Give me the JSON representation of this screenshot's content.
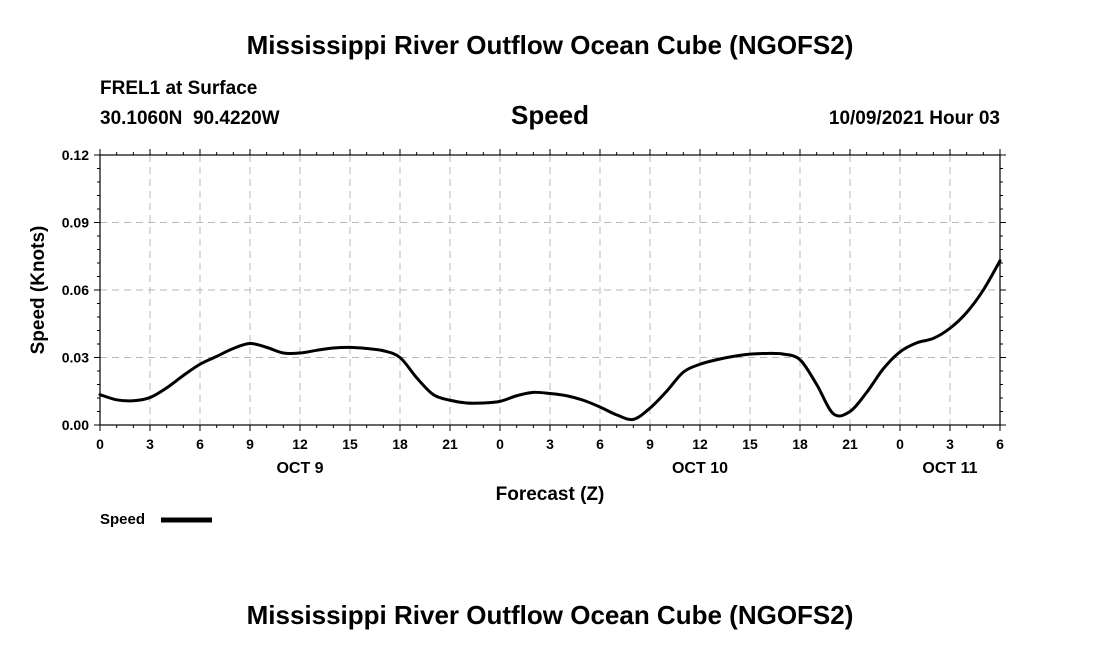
{
  "header": {
    "title_top": "Mississippi River Outflow Ocean Cube (NGOFS2)",
    "title_bottom": "Mississippi River Outflow Ocean Cube (NGOFS2)",
    "station": "FREL1 at Surface",
    "coordinates": "30.1060N  90.4220W",
    "parameter": "Speed",
    "datetime": "10/09/2021 Hour 03"
  },
  "chart_data": {
    "type": "line",
    "xlabel": "Forecast (Z)",
    "ylabel": "Speed (Knots)",
    "x_unit": "forecast hour from 0Z Oct 9 (2021)",
    "xlim": [
      0,
      54
    ],
    "ylim": [
      0,
      0.12
    ],
    "yticks": [
      "0.00",
      "0.03",
      "0.06",
      "0.09",
      "0.12"
    ],
    "ytick_values": [
      0,
      0.03,
      0.06,
      0.09,
      0.12
    ],
    "xtick_labels": [
      "0",
      "3",
      "6",
      "9",
      "12",
      "15",
      "18",
      "21",
      "0",
      "3",
      "6",
      "9",
      "12",
      "15",
      "18",
      "21",
      "0",
      "3",
      "6"
    ],
    "date_labels": [
      {
        "label": "OCT 9",
        "hour": 12
      },
      {
        "label": "OCT 10",
        "hour": 36
      },
      {
        "label": "OCT 11",
        "hour": 51
      }
    ],
    "grid": true,
    "legend": "bottom-left",
    "series": [
      {
        "name": "Speed",
        "color": "#000000",
        "x": [
          0,
          1,
          2,
          3,
          4,
          5,
          6,
          7,
          8,
          9,
          10,
          11,
          12,
          13,
          14,
          15,
          16,
          17,
          18,
          19,
          20,
          21,
          22,
          23,
          24,
          25,
          26,
          27,
          28,
          29,
          30,
          31,
          32,
          33,
          34,
          35,
          36,
          37,
          38,
          39,
          40,
          41,
          42,
          43,
          44,
          45,
          46,
          47,
          48,
          49,
          50,
          51,
          52,
          53,
          54
        ],
        "values": [
          0.0135,
          0.0112,
          0.0108,
          0.0122,
          0.0165,
          0.022,
          0.027,
          0.0305,
          0.034,
          0.0362,
          0.0345,
          0.032,
          0.032,
          0.0332,
          0.0342,
          0.0345,
          0.034,
          0.033,
          0.03,
          0.021,
          0.0135,
          0.011,
          0.0098,
          0.0098,
          0.0105,
          0.013,
          0.0145,
          0.014,
          0.013,
          0.011,
          0.008,
          0.0045,
          0.0025,
          0.0075,
          0.015,
          0.0235,
          0.027,
          0.029,
          0.0305,
          0.0315,
          0.0318,
          0.0315,
          0.029,
          0.018,
          0.005,
          0.006,
          0.0145,
          0.025,
          0.0325,
          0.0365,
          0.0385,
          0.043,
          0.05,
          0.06,
          0.073
        ]
      }
    ]
  },
  "legend": {
    "label": "Speed"
  }
}
